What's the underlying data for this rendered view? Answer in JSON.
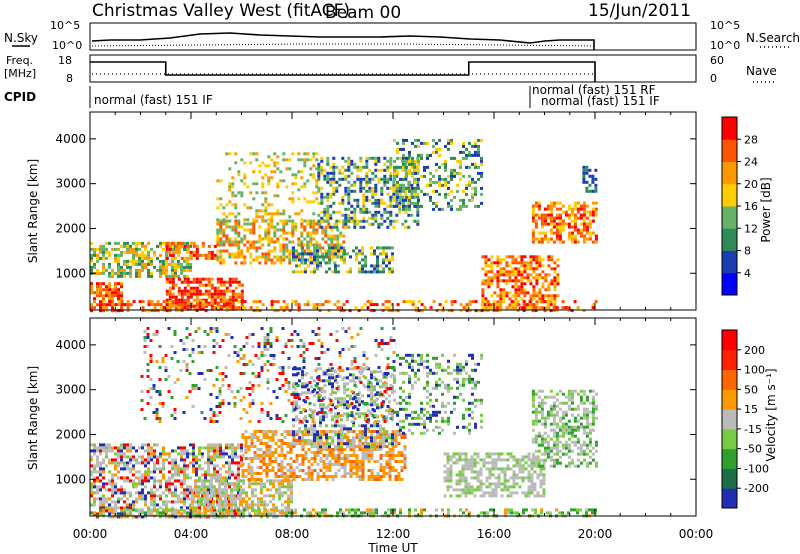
{
  "header": {
    "title": "Christmas Valley West (fitACF)",
    "beam": "Beam 00",
    "date": "15/Jun/2011"
  },
  "top_panels": {
    "nsky": {
      "label": "N.Sky",
      "right_label": "N.Search",
      "left_ticks": [
        "10^5",
        "10^0"
      ],
      "right_ticks": [
        "10^5",
        "10^0"
      ]
    },
    "freq": {
      "label_line1": "Freq.",
      "label_line2": "[MHz]",
      "right_label": "Nave",
      "left_ticks": [
        "18",
        "8"
      ],
      "right_ticks": [
        "60",
        "0"
      ],
      "steps": [
        {
          "start_hour": 0.0,
          "end_hour": 3.0,
          "level": "high"
        },
        {
          "start_hour": 3.0,
          "end_hour": 15.0,
          "level": "low"
        },
        {
          "start_hour": 15.0,
          "end_hour": 20.0,
          "level": "high"
        }
      ]
    },
    "cpid": {
      "label": "CPID",
      "segments": [
        {
          "text": "normal (fast) 151 IF",
          "start_hour": 0.0
        },
        {
          "text": "normal (fast) 151 RF",
          "start_hour": 17.4
        },
        {
          "text": "normal (fast) 151 IF",
          "start_hour": 17.7
        }
      ]
    }
  },
  "colors": {
    "power": [
      "#0000ff",
      "#1c3cb4",
      "#2e8b57",
      "#66b266",
      "#ffcc00",
      "#ff9900",
      "#ff5500",
      "#ff0000"
    ],
    "velocity": [
      "#1f2eb5",
      "#1f6e4a",
      "#2fa02f",
      "#77cc44",
      "#bbbbbb",
      "#ff9900",
      "#ff6600",
      "#ff2200",
      "#ff0000"
    ]
  },
  "chart_data": [
    {
      "type": "heatmap",
      "ylabel": "Slant Range [km]",
      "xlabel": "Time UT",
      "xlim": [
        0,
        24
      ],
      "ylim": [
        180,
        4600
      ],
      "x_ticks": [
        "00:00",
        "04:00",
        "08:00",
        "12:00",
        "16:00",
        "20:00",
        "00:00"
      ],
      "y_ticks": [
        1000,
        2000,
        3000,
        4000
      ],
      "colorbar": {
        "label": "Power [dB]",
        "ticks": [
          "4",
          "8",
          "12",
          "16",
          "20",
          "24",
          "28"
        ]
      },
      "data_end_hour": 20.0
    },
    {
      "type": "heatmap",
      "ylabel": "Slant Range [km]",
      "xlabel": "Time UT",
      "xlim": [
        0,
        24
      ],
      "ylim": [
        180,
        4600
      ],
      "x_ticks": [
        "00:00",
        "04:00",
        "08:00",
        "12:00",
        "16:00",
        "20:00",
        "00:00"
      ],
      "y_ticks": [
        1000,
        2000,
        3000,
        4000
      ],
      "colorbar": {
        "label": "Velocity [m s⁻¹]",
        "ticks": [
          "200",
          "100",
          "50",
          "15",
          "-15",
          "-50",
          "-100",
          "-200"
        ]
      },
      "data_end_hour": 20.0
    }
  ]
}
